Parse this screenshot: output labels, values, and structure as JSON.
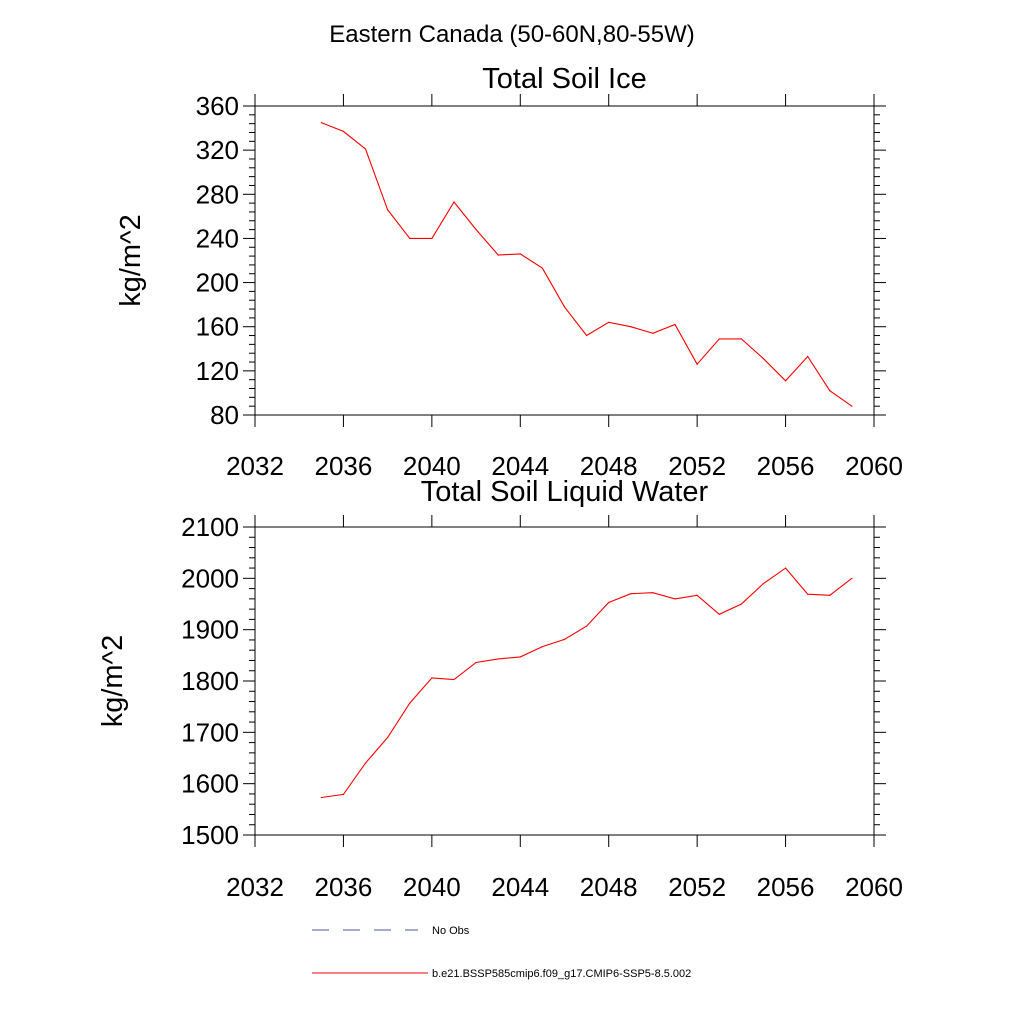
{
  "figure": {
    "suptitle": "Eastern Canada (50-60N,80-55W)",
    "legend": {
      "placement": "bottom",
      "entries": [
        {
          "label": "No Obs",
          "style": "dashed",
          "color": "#4a5a9a"
        },
        {
          "label": "b.e21.BSSP585cmip6.f09_g17.CMIP6-SSP5-8.5.002",
          "style": "solid",
          "color": "#ff0000"
        }
      ]
    }
  },
  "chart_data": [
    {
      "type": "line",
      "title": "Total Soil Ice",
      "xlabel": "",
      "ylabel": "kg/m^2",
      "xlim": [
        2032,
        2060
      ],
      "ylim": [
        80,
        360
      ],
      "xticks": [
        2032,
        2036,
        2040,
        2044,
        2048,
        2052,
        2056,
        2060
      ],
      "yticks": [
        80,
        120,
        160,
        200,
        240,
        280,
        320,
        360
      ],
      "grid": false,
      "series": [
        {
          "name": "b.e21.BSSP585cmip6.f09_g17.CMIP6-SSP5-8.5.002",
          "color": "#ff0000",
          "x": [
            2035,
            2036,
            2037,
            2038,
            2039,
            2040,
            2041,
            2042,
            2043,
            2044,
            2045,
            2046,
            2047,
            2048,
            2049,
            2050,
            2051,
            2052,
            2053,
            2054,
            2055,
            2056,
            2057,
            2058,
            2059
          ],
          "y": [
            345,
            337,
            321,
            266,
            240,
            240,
            273,
            248,
            225,
            226,
            213,
            178,
            152,
            164,
            160,
            154,
            162,
            126,
            149,
            149,
            131,
            111,
            133,
            102,
            88
          ]
        }
      ]
    },
    {
      "type": "line",
      "title": "Total Soil Liquid Water",
      "xlabel": "",
      "ylabel": "kg/m^2",
      "xlim": [
        2032,
        2060
      ],
      "ylim": [
        1500,
        2100
      ],
      "xticks": [
        2032,
        2036,
        2040,
        2044,
        2048,
        2052,
        2056,
        2060
      ],
      "yticks": [
        1500,
        1600,
        1700,
        1800,
        1900,
        2000,
        2100
      ],
      "grid": false,
      "series": [
        {
          "name": "b.e21.BSSP585cmip6.f09_g17.CMIP6-SSP5-8.5.002",
          "color": "#ff0000",
          "x": [
            2035,
            2036,
            2037,
            2038,
            2039,
            2040,
            2041,
            2042,
            2043,
            2044,
            2045,
            2046,
            2047,
            2048,
            2049,
            2050,
            2051,
            2052,
            2053,
            2054,
            2055,
            2056,
            2057,
            2058,
            2059
          ],
          "y": [
            1573,
            1579,
            1640,
            1690,
            1757,
            1806,
            1803,
            1836,
            1843,
            1847,
            1867,
            1881,
            1907,
            1953,
            1970,
            1972,
            1960,
            1967,
            1930,
            1950,
            1990,
            2020,
            1969,
            1967,
            2000
          ]
        }
      ]
    }
  ]
}
